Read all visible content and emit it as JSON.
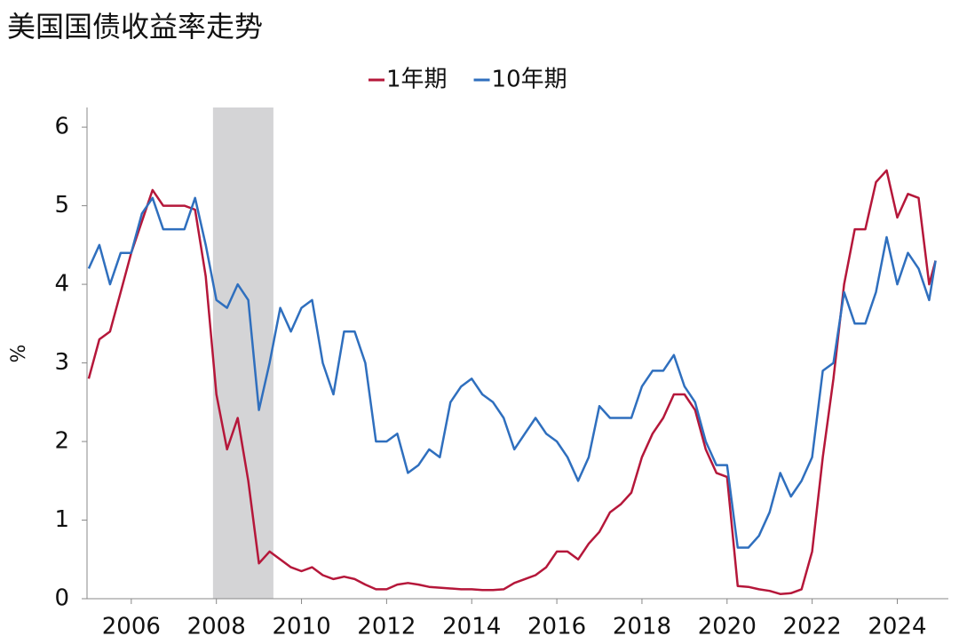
{
  "chart_data": {
    "type": "line",
    "title": "美国国债收益率走势",
    "y_label": "%",
    "x": [
      2005.0,
      2005.25,
      2005.5,
      2005.75,
      2006.0,
      2006.25,
      2006.5,
      2006.75,
      2007.0,
      2007.25,
      2007.5,
      2007.75,
      2008.0,
      2008.25,
      2008.5,
      2008.75,
      2009.0,
      2009.25,
      2009.5,
      2009.75,
      2010.0,
      2010.25,
      2010.5,
      2010.75,
      2011.0,
      2011.25,
      2011.5,
      2011.75,
      2012.0,
      2012.25,
      2012.5,
      2012.75,
      2013.0,
      2013.25,
      2013.5,
      2013.75,
      2014.0,
      2014.25,
      2014.5,
      2014.75,
      2015.0,
      2015.25,
      2015.5,
      2015.75,
      2016.0,
      2016.25,
      2016.5,
      2016.75,
      2017.0,
      2017.25,
      2017.5,
      2017.75,
      2018.0,
      2018.25,
      2018.5,
      2018.75,
      2019.0,
      2019.25,
      2019.5,
      2019.75,
      2020.0,
      2020.25,
      2020.5,
      2020.75,
      2021.0,
      2021.25,
      2021.5,
      2021.75,
      2022.0,
      2022.25,
      2022.5,
      2022.75,
      2023.0,
      2023.25,
      2023.5,
      2023.75,
      2024.0,
      2024.25,
      2024.5,
      2024.75,
      2024.9
    ],
    "series": [
      {
        "name": "1年期",
        "color": "#b5173a",
        "values": [
          2.8,
          3.3,
          3.4,
          3.9,
          4.4,
          4.8,
          5.2,
          5.0,
          5.0,
          5.0,
          4.95,
          4.1,
          2.6,
          1.9,
          2.3,
          1.5,
          0.45,
          0.6,
          0.5,
          0.4,
          0.35,
          0.4,
          0.3,
          0.25,
          0.28,
          0.25,
          0.18,
          0.12,
          0.12,
          0.18,
          0.2,
          0.18,
          0.15,
          0.14,
          0.13,
          0.12,
          0.12,
          0.11,
          0.11,
          0.12,
          0.2,
          0.25,
          0.3,
          0.4,
          0.6,
          0.6,
          0.5,
          0.7,
          0.85,
          1.1,
          1.2,
          1.35,
          1.8,
          2.1,
          2.3,
          2.6,
          2.6,
          2.4,
          1.9,
          1.6,
          1.55,
          0.16,
          0.15,
          0.12,
          0.1,
          0.06,
          0.07,
          0.12,
          0.6,
          1.8,
          2.8,
          4.0,
          4.7,
          4.7,
          5.3,
          5.45,
          4.85,
          5.15,
          5.1,
          4.0,
          4.3
        ]
      },
      {
        "name": "10年期",
        "color": "#2f6fbe",
        "values": [
          4.2,
          4.5,
          4.0,
          4.4,
          4.4,
          4.9,
          5.1,
          4.7,
          4.7,
          4.7,
          5.1,
          4.5,
          3.8,
          3.7,
          4.0,
          3.8,
          2.4,
          3.0,
          3.7,
          3.4,
          3.7,
          3.8,
          3.0,
          2.6,
          3.4,
          3.4,
          3.0,
          2.0,
          2.0,
          2.1,
          1.6,
          1.7,
          1.9,
          1.8,
          2.5,
          2.7,
          2.8,
          2.6,
          2.5,
          2.3,
          1.9,
          2.1,
          2.3,
          2.1,
          2.0,
          1.8,
          1.5,
          1.8,
          2.45,
          2.3,
          2.3,
          2.3,
          2.7,
          2.9,
          2.9,
          3.1,
          2.7,
          2.5,
          2.0,
          1.7,
          1.7,
          0.65,
          0.65,
          0.8,
          1.1,
          1.6,
          1.3,
          1.5,
          1.8,
          2.9,
          3.0,
          3.9,
          3.5,
          3.5,
          3.9,
          4.6,
          4.0,
          4.4,
          4.2,
          3.8,
          4.3
        ]
      }
    ],
    "shade": [
      2007.92,
      2009.34
    ],
    "xlim": [
      2004.96,
      2025.2
    ],
    "ylim": [
      0,
      6.25
    ],
    "xticks": [
      2006,
      2008,
      2010,
      2012,
      2014,
      2016,
      2018,
      2020,
      2022,
      2024
    ],
    "yticks": [
      0,
      1,
      2,
      3,
      4,
      5,
      6
    ]
  }
}
